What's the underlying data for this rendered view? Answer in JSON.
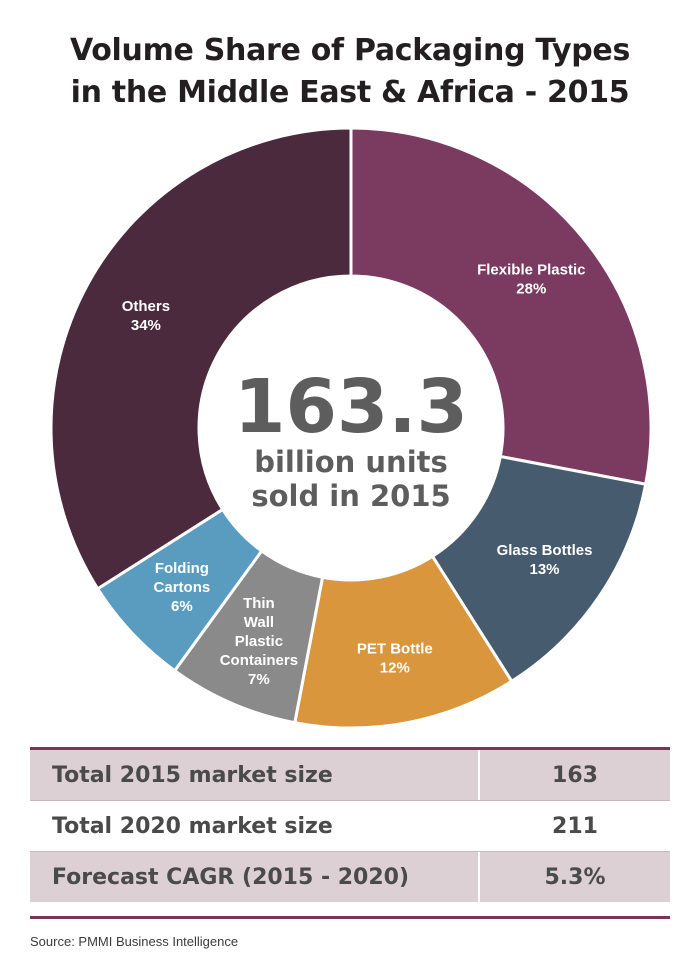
{
  "title_line1": "Volume Share of Packaging Types",
  "title_line2": "in the Middle East & Africa - 2015",
  "center": {
    "value": "163.3",
    "line1": "billion units",
    "line2": "sold in 2015"
  },
  "chart_data": {
    "type": "pie",
    "donut": true,
    "title": "Volume Share of Packaging Types in the Middle East & Africa - 2015",
    "center_text": "163.3 billion units sold in 2015",
    "slices": [
      {
        "label_lines": [
          "Flexible Plastic"
        ],
        "label": "Flexible Plastic",
        "value": 28,
        "value_label": "28%",
        "color": "#7b3a5f"
      },
      {
        "label_lines": [
          "Glass Bottles"
        ],
        "label": "Glass Bottles",
        "value": 13,
        "value_label": "13%",
        "color": "#465b6d"
      },
      {
        "label_lines": [
          "PET Bottle"
        ],
        "label": "PET Bottle",
        "value": 12,
        "value_label": "12%",
        "color": "#d9963d"
      },
      {
        "label_lines": [
          "Thin",
          "Wall",
          "Plastic",
          "Containers"
        ],
        "label": "Thin Wall Plastic Containers",
        "value": 7,
        "value_label": "7%",
        "color": "#8a8a8a"
      },
      {
        "label_lines": [
          "Folding",
          "Cartons"
        ],
        "label": "Folding Cartons",
        "value": 6,
        "value_label": "6%",
        "color": "#5a9cc0"
      },
      {
        "label_lines": [
          "Others"
        ],
        "label": "Others",
        "value": 34,
        "value_label": "34%",
        "color": "#4a2a3c"
      }
    ]
  },
  "table": {
    "rows": [
      {
        "label": "Total 2015 market size",
        "value": "163",
        "shaded": true
      },
      {
        "label": "Total 2020 market size",
        "value": "211",
        "shaded": false
      },
      {
        "label": "Forecast CAGR (2015 - 2020)",
        "value": "5.3%",
        "shaded": true
      }
    ]
  },
  "source": "Source: PMMI Business Intelligence"
}
